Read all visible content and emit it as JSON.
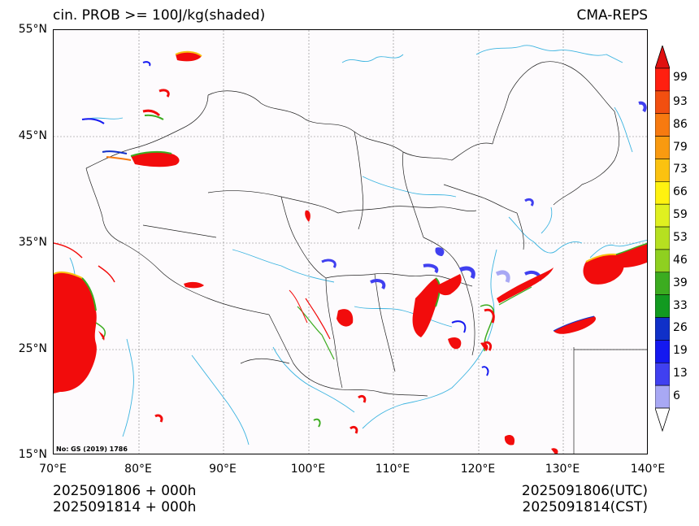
{
  "header": {
    "title_left": "cin. PROB >= 100J/kg(shaded)",
    "title_right": "CMA-REPS"
  },
  "axes": {
    "lat_labels": [
      "55°N",
      "45°N",
      "35°N",
      "25°N",
      "15°N"
    ],
    "lon_labels": [
      "70°E",
      "80°E",
      "90°E",
      "100°E",
      "110°E",
      "120°E",
      "130°E",
      "140°E"
    ],
    "lat_range": [
      15,
      55
    ],
    "lon_range": [
      70,
      140
    ]
  },
  "stamp": "No: GS (2019) 1786",
  "footer": {
    "left_line1": "2025091806  +  000h",
    "left_line2": "2025091814  +  000h",
    "right_line1": "2025091806(UTC)",
    "right_line2": "2025091814(CST)"
  },
  "colorbar": {
    "labels": [
      "99",
      "93",
      "86",
      "79",
      "73",
      "66",
      "59",
      "53",
      "46",
      "39",
      "33",
      "26",
      "19",
      "13",
      "6"
    ],
    "colors": [
      "#ff1f10",
      "#f24f10",
      "#f77a10",
      "#f99a10",
      "#fbc210",
      "#fff210",
      "#e0f020",
      "#b6e020",
      "#8fd020",
      "#3cac20",
      "#129a20",
      "#1030c8",
      "#1418f0",
      "#4040f0",
      "#a8a8f4"
    ],
    "extend_top": "#e01010",
    "extend_bottom": "#ffffff"
  },
  "colors": {
    "coastline": "#3cb4e0",
    "border": "#000000",
    "grid": "#808080",
    "background": "#fdfbfd"
  }
}
